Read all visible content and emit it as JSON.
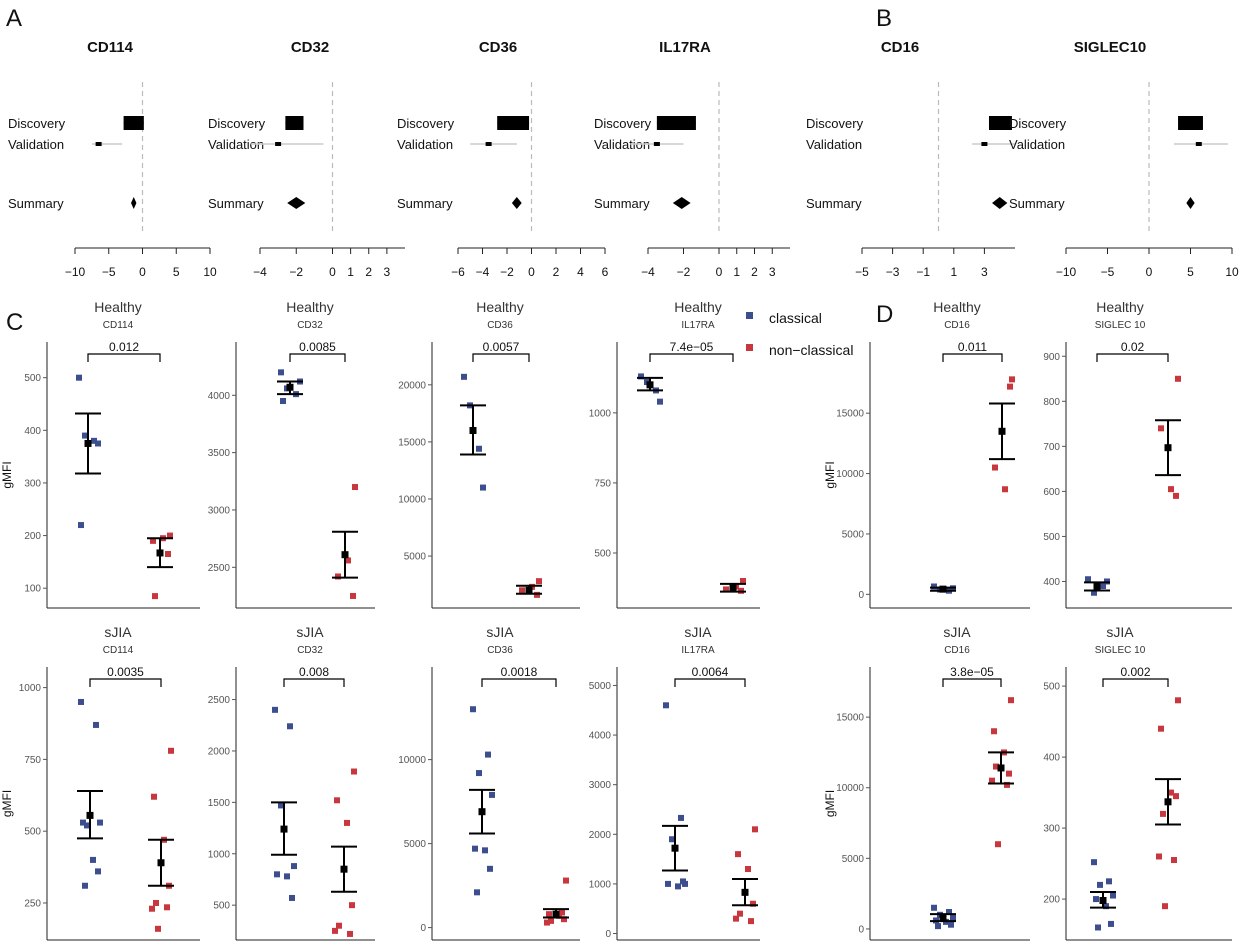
{
  "panel_labels": [
    "A",
    "B",
    "C",
    "D"
  ],
  "colors": {
    "classical": "#3d4e8f",
    "non_classical": "#c8373d",
    "summary": "#000000",
    "ci_line": "#cccccc",
    "zero_line": "#bbbbbb"
  },
  "legend": [
    {
      "label": "classical",
      "color": "#3d4e8f"
    },
    {
      "label": "non−classical",
      "color": "#c8373d"
    }
  ],
  "chart_data": [
    {
      "type": "forest",
      "title": "CD114",
      "row_labels": [
        "Discovery",
        "Validation",
        "Summary"
      ],
      "xlim": [
        -10,
        10
      ],
      "xticks": [
        -10,
        -5,
        0,
        5,
        10
      ],
      "discovery": {
        "est": -1.3,
        "lo": -2.8,
        "hi": 0.2
      },
      "validation": {
        "est": -6.5,
        "lo": -7.5,
        "hi": -3.0
      },
      "summary": {
        "est": -1.3,
        "lo": -1.7,
        "hi": -0.9
      }
    },
    {
      "type": "forest",
      "title": "CD32",
      "row_labels": [
        "Discovery",
        "Validation",
        "Summary"
      ],
      "xlim": [
        -4,
        4
      ],
      "xticks": [
        -4,
        -2,
        0,
        1,
        2,
        3
      ],
      "discovery": {
        "est": -2.0,
        "lo": -2.6,
        "hi": -1.6
      },
      "validation": {
        "est": -3.0,
        "lo": -4.5,
        "hi": -0.5
      },
      "summary": {
        "est": -2.0,
        "lo": -2.5,
        "hi": -1.5
      }
    },
    {
      "type": "forest",
      "title": "CD36",
      "row_labels": [
        "Discovery",
        "Validation",
        "Summary"
      ],
      "xlim": [
        -6,
        6
      ],
      "xticks": [
        -6,
        -4,
        -2,
        0,
        2,
        4,
        6
      ],
      "discovery": {
        "est": -1.2,
        "lo": -2.8,
        "hi": -0.2
      },
      "validation": {
        "est": -3.5,
        "lo": -5.0,
        "hi": -1.2
      },
      "summary": {
        "est": -1.2,
        "lo": -1.6,
        "hi": -0.8
      }
    },
    {
      "type": "forest",
      "title": "IL17RA",
      "row_labels": [
        "Discovery",
        "Validation",
        "Summary"
      ],
      "xlim": [
        -4,
        4
      ],
      "xticks": [
        -4,
        -2,
        0,
        1,
        2,
        3
      ],
      "discovery": {
        "est": -2.1,
        "lo": -3.5,
        "hi": -1.3
      },
      "validation": {
        "est": -3.5,
        "lo": -5.0,
        "hi": -2.0
      },
      "summary": {
        "est": -2.1,
        "lo": -2.6,
        "hi": -1.6
      }
    },
    {
      "type": "forest",
      "title": "CD16",
      "row_labels": [
        "Discovery",
        "Validation",
        "Summary"
      ],
      "xlim": [
        -5,
        5
      ],
      "xticks": [
        -5,
        -3,
        -1,
        1,
        3
      ],
      "discovery": {
        "est": 4.0,
        "lo": 3.3,
        "hi": 4.8
      },
      "validation": {
        "est": 3.0,
        "lo": 2.2,
        "hi": 5.0
      },
      "summary": {
        "est": 4.0,
        "lo": 3.5,
        "hi": 4.5
      }
    },
    {
      "type": "forest",
      "title": "SIGLEC10",
      "row_labels": [
        "Discovery",
        "Validation",
        "Summary"
      ],
      "xlim": [
        -10,
        10
      ],
      "xticks": [
        -10,
        -5,
        0,
        5,
        10
      ],
      "discovery": {
        "est": 5.0,
        "lo": 3.5,
        "hi": 6.5
      },
      "validation": {
        "est": 6.0,
        "lo": 3.0,
        "hi": 9.5
      },
      "summary": {
        "est": 5.0,
        "lo": 4.5,
        "hi": 5.5
      }
    },
    {
      "type": "scatter",
      "title": "Healthy",
      "subtitle": "CD114",
      "pvalue": "0.012",
      "ylabel": "gMFI",
      "ylim": [
        70,
        545
      ],
      "yticks": [
        100,
        200,
        300,
        400,
        500
      ],
      "classical": [
        500,
        380,
        390,
        375,
        220
      ],
      "non_classical": [
        200,
        190,
        195,
        165,
        85
      ],
      "classical_stat": {
        "mean": 375,
        "lo": 318,
        "hi": 432
      },
      "non_classical_stat": {
        "mean": 167,
        "lo": 140,
        "hi": 195
      }
    },
    {
      "type": "scatter",
      "title": "Healthy",
      "subtitle": "CD32",
      "pvalue": "0.0085",
      "ylabel": "",
      "ylim": [
        2180,
        4360
      ],
      "yticks": [
        2500,
        3000,
        3500,
        4000
      ],
      "classical": [
        4200,
        4010,
        4060,
        4120,
        3950
      ],
      "non_classical": [
        3200,
        2420,
        2560,
        2250
      ],
      "classical_stat": {
        "mean": 4070,
        "lo": 4010,
        "hi": 4120
      },
      "non_classical_stat": {
        "mean": 2610,
        "lo": 2410,
        "hi": 2810
      }
    },
    {
      "type": "scatter",
      "title": "Healthy",
      "subtitle": "CD36",
      "pvalue": "0.0057",
      "ylabel": "",
      "ylim": [
        800,
        22700
      ],
      "yticks": [
        5000,
        10000,
        15000,
        20000
      ],
      "classical": [
        20700,
        14400,
        18200,
        11000
      ],
      "non_classical": [
        2800,
        2000,
        2300,
        1600
      ],
      "classical_stat": {
        "mean": 16000,
        "lo": 13900,
        "hi": 18200
      },
      "non_classical_stat": {
        "mean": 2000,
        "lo": 1700,
        "hi": 2400
      }
    },
    {
      "type": "scatter",
      "title": "Healthy",
      "subtitle": "IL17RA",
      "pvalue": "7.4e−05",
      "ylabel": "",
      "ylim": [
        318,
        1210
      ],
      "yticks": [
        500,
        750,
        1000
      ],
      "classical": [
        1130,
        1080,
        1110,
        1040
      ],
      "non_classical": [
        400,
        370,
        380,
        365
      ],
      "classical_stat": {
        "mean": 1100,
        "lo": 1080,
        "hi": 1125
      },
      "non_classical_stat": {
        "mean": 375,
        "lo": 362,
        "hi": 390
      }
    },
    {
      "type": "scatter",
      "title": "Healthy",
      "subtitle": "CD16",
      "pvalue": "0.011",
      "ylabel": "gMFI",
      "ylim": [
        -800,
        19900
      ],
      "yticks": [
        0,
        5000,
        10000,
        15000
      ],
      "classical": [
        650,
        300,
        400,
        500
      ],
      "non_classical": [
        17800,
        10500,
        8700,
        17200
      ],
      "classical_stat": {
        "mean": 430,
        "lo": 300,
        "hi": 560
      },
      "non_classical_stat": {
        "mean": 13500,
        "lo": 11200,
        "hi": 15800
      }
    },
    {
      "type": "scatter",
      "title": "Healthy",
      "subtitle": "SIGLEC 10",
      "pvalue": "0.02",
      "ylabel": "",
      "ylim": [
        350,
        905
      ],
      "yticks": [
        400,
        500,
        600,
        700,
        800,
        900
      ],
      "classical": [
        405,
        390,
        375,
        400
      ],
      "non_classical": [
        850,
        740,
        605,
        590
      ],
      "classical_stat": {
        "mean": 390,
        "lo": 380,
        "hi": 398
      },
      "non_classical_stat": {
        "mean": 697,
        "lo": 636,
        "hi": 758
      }
    },
    {
      "type": "scatter",
      "title": "sJIA",
      "subtitle": "CD114",
      "pvalue": "0.0035",
      "ylabel": "gMFI",
      "ylim": [
        135,
        1030
      ],
      "yticks": [
        250,
        500,
        750,
        1000
      ],
      "classical": [
        950,
        870,
        520,
        530,
        530,
        400,
        360,
        310
      ],
      "non_classical": [
        780,
        620,
        470,
        310,
        250,
        230,
        235,
        160
      ],
      "classical_stat": {
        "mean": 555,
        "lo": 475,
        "hi": 640
      },
      "non_classical_stat": {
        "mean": 390,
        "lo": 310,
        "hi": 470
      }
    },
    {
      "type": "scatter",
      "title": "sJIA",
      "subtitle": "CD32",
      "pvalue": "0.008",
      "ylabel": "",
      "ylim": [
        200,
        2700
      ],
      "yticks": [
        500,
        1000,
        1500,
        2000,
        2500
      ],
      "classical": [
        2400,
        2240,
        1470,
        880,
        800,
        780,
        570
      ],
      "non_classical": [
        1800,
        1520,
        1300,
        500,
        300,
        250,
        220
      ],
      "classical_stat": {
        "mean": 1240,
        "lo": 990,
        "hi": 1500
      },
      "non_classical_stat": {
        "mean": 850,
        "lo": 630,
        "hi": 1070
      }
    },
    {
      "type": "scatter",
      "title": "sJIA",
      "subtitle": "CD36",
      "pvalue": "0.0018",
      "ylabel": "",
      "ylim": [
        -500,
        14800
      ],
      "yticks": [
        0,
        5000,
        10000
      ],
      "classical": [
        13000,
        10300,
        9200,
        7900,
        4700,
        4600,
        3500,
        2100
      ],
      "non_classical": [
        2800,
        800,
        700,
        500,
        400,
        300,
        900
      ],
      "classical_stat": {
        "mean": 6900,
        "lo": 5600,
        "hi": 8200
      },
      "non_classical_stat": {
        "mean": 800,
        "lo": 600,
        "hi": 1100
      }
    },
    {
      "type": "scatter",
      "title": "sJIA",
      "subtitle": "IL17RA",
      "pvalue": "0.0064",
      "ylabel": "",
      "ylim": [
        -50,
        5130
      ],
      "yticks": [
        0,
        1000,
        2000,
        3000,
        4000,
        5000
      ],
      "classical": [
        4600,
        2330,
        1900,
        1000,
        1000,
        950,
        1050
      ],
      "non_classical": [
        2100,
        1600,
        1300,
        600,
        400,
        300,
        250
      ],
      "classical_stat": {
        "mean": 1720,
        "lo": 1270,
        "hi": 2170
      },
      "non_classical_stat": {
        "mean": 830,
        "lo": 570,
        "hi": 1100
      }
    },
    {
      "type": "scatter",
      "title": "sJIA",
      "subtitle": "CD16",
      "pvalue": "3.8e−05",
      "ylabel": "gMFI",
      "ylim": [
        -500,
        17700
      ],
      "yticks": [
        0,
        5000,
        10000,
        15000
      ],
      "classical": [
        1500,
        1200,
        1000,
        800,
        600,
        500,
        300,
        200
      ],
      "non_classical": [
        16200,
        14000,
        12500,
        11000,
        11500,
        10500,
        10200,
        6000
      ],
      "classical_stat": {
        "mean": 800,
        "lo": 550,
        "hi": 1050
      },
      "non_classical_stat": {
        "mean": 11400,
        "lo": 10300,
        "hi": 12500
      }
    },
    {
      "type": "scatter",
      "title": "sJIA",
      "subtitle": "SIGLEC 10",
      "pvalue": "0.002",
      "ylabel": "",
      "ylim": [
        148,
        510
      ],
      "yticks": [
        200,
        300,
        400,
        500
      ],
      "classical": [
        252,
        225,
        220,
        205,
        200,
        190,
        165,
        160
      ],
      "non_classical": [
        480,
        440,
        350,
        345,
        320,
        260,
        255,
        190
      ],
      "classical_stat": {
        "mean": 198,
        "lo": 188,
        "hi": 210
      },
      "non_classical_stat": {
        "mean": 337,
        "lo": 305,
        "hi": 369
      }
    }
  ]
}
